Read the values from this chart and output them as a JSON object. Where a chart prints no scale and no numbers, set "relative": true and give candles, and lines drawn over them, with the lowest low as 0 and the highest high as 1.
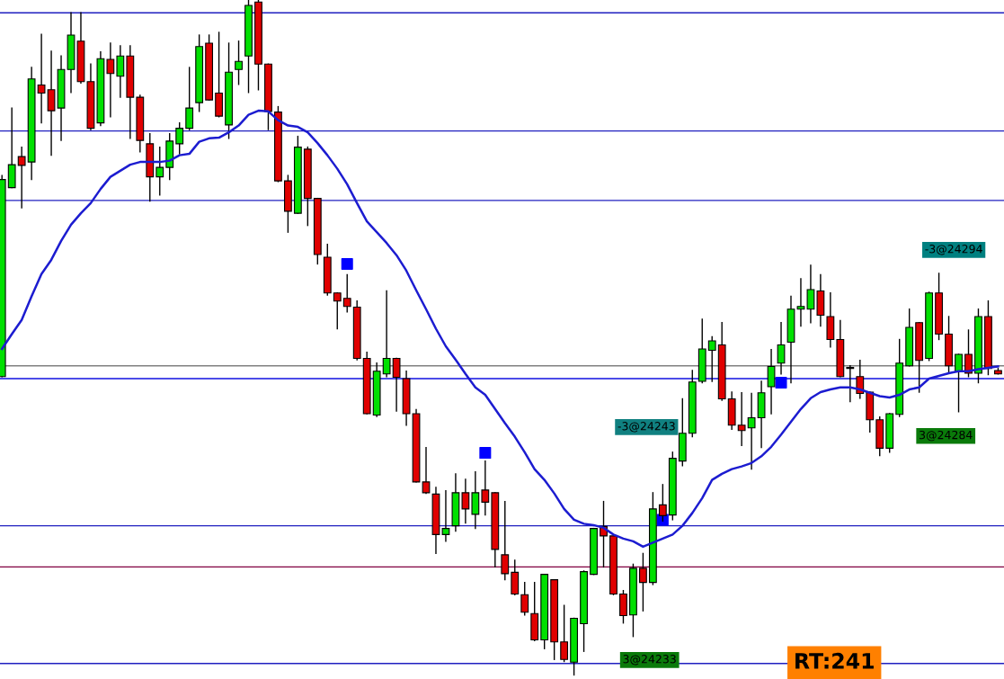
{
  "chart_data": {
    "type": "candlestick",
    "relative": true,
    "categories": [
      null,
      null,
      null,
      null,
      null,
      null,
      null,
      null,
      null,
      null,
      null,
      null,
      null,
      null,
      null,
      null,
      null,
      null,
      null,
      null,
      null,
      null,
      null,
      null,
      null,
      null,
      null,
      null,
      null,
      null,
      null,
      null,
      null,
      null,
      null,
      null,
      null,
      null,
      null,
      null,
      null,
      null,
      null,
      null,
      null,
      null,
      null,
      null,
      null,
      null,
      null,
      null,
      null,
      null,
      null,
      null,
      null,
      null,
      null,
      null,
      null,
      null,
      null,
      null,
      null,
      null,
      null,
      null,
      null,
      null,
      null,
      null,
      null,
      null,
      null,
      null,
      null,
      null,
      null,
      null,
      null,
      null,
      null,
      null,
      null,
      null,
      null,
      null,
      null,
      null,
      null,
      null,
      null,
      null,
      null,
      null,
      null,
      null,
      null,
      null,
      null,
      null
    ],
    "colors": [
      "#00e000",
      "#00e000",
      "#e00000",
      "#00e000",
      "#e00000",
      "#e00000",
      "#00e000",
      "#00e000",
      "#e00000",
      "#e00000",
      "#00e000",
      "#e00000",
      "#00e000",
      "#e00000",
      "#e00000",
      "#e00000",
      "#00e000",
      "#00e000",
      "#00e000",
      "#00e000",
      "#00e000",
      "#e00000",
      "#e00000",
      "#00e000",
      "#00e000",
      "#00e000",
      "#e00000",
      "#e00000",
      "#e00000",
      "#e00000",
      "#00e000",
      "#e00000",
      "#e00000",
      "#e00000",
      "#e00000",
      "#e00000",
      "#e00000",
      "#e00000",
      "#00e000",
      "#00e000",
      "#e00000",
      "#e00000",
      "#e00000",
      "#e00000",
      "#e00000",
      "#00e000",
      "#00e000",
      "#e00000",
      "#00e000",
      "#e00000",
      "#e00000",
      "#e00000",
      "#e00000",
      "#e00000",
      "#e00000",
      "#00e000",
      "#e00000",
      "#e00000",
      "#00e000",
      "#00e000",
      "#00e000",
      "#e00000",
      "#e00000",
      "#e00000",
      "#00e000",
      "#e00000",
      "#00e000",
      "#e00000",
      "#00e000",
      "#00e000",
      "#00e000",
      "#00e000",
      "#00e000",
      "#e00000",
      "#e00000",
      "#e00000",
      "#00e000",
      "#00e000",
      "#00e000",
      "#00e000",
      "#00e000",
      "#00e000",
      "#00e000",
      "#e00000",
      "#e00000",
      "#e00000",
      "#00e000",
      "#e00000",
      "#e00000",
      "#e00000",
      "#00e000",
      "#00e000",
      "#00e000",
      "#e00000",
      "#00e000",
      "#e00000",
      "#e00000",
      "#00e000",
      "#e00000",
      "#00e000",
      "#e00000",
      "#e00000"
    ],
    "ohlc": [
      [
        0.442,
        0.74,
        0.442,
        0.734
      ],
      [
        0.722,
        0.84,
        0.722,
        0.756
      ],
      [
        0.768,
        0.782,
        0.692,
        0.755
      ],
      [
        0.76,
        0.9,
        0.734,
        0.883
      ],
      [
        0.874,
        0.949,
        0.818,
        0.862
      ],
      [
        0.867,
        0.924,
        0.77,
        0.836
      ],
      [
        0.84,
        0.917,
        0.792,
        0.897
      ],
      [
        0.897,
        0.981,
        0.863,
        0.948
      ],
      [
        0.939,
        0.981,
        0.877,
        0.879
      ],
      [
        0.879,
        0.905,
        0.808,
        0.81
      ],
      [
        0.818,
        0.923,
        0.814,
        0.913
      ],
      [
        0.912,
        0.936,
        0.827,
        0.891
      ],
      [
        0.887,
        0.932,
        0.856,
        0.917
      ],
      [
        0.917,
        0.932,
        0.795,
        0.856
      ],
      [
        0.856,
        0.859,
        0.775,
        0.792
      ],
      [
        0.787,
        0.802,
        0.702,
        0.738
      ],
      [
        0.738,
        0.782,
        0.711,
        0.752
      ],
      [
        0.752,
        0.802,
        0.734,
        0.791
      ],
      [
        0.787,
        0.818,
        0.772,
        0.81
      ],
      [
        0.81,
        0.9,
        0.808,
        0.84
      ],
      [
        0.848,
        0.948,
        0.835,
        0.931
      ],
      [
        0.936,
        0.948,
        0.852,
        0.852
      ],
      [
        0.862,
        0.952,
        0.827,
        0.828
      ],
      [
        0.815,
        0.936,
        0.795,
        0.893
      ],
      [
        0.897,
        0.939,
        0.875,
        0.909
      ],
      [
        0.917,
        1.0,
        0.863,
        0.992
      ],
      [
        0.997,
        1.0,
        0.867,
        0.905
      ],
      [
        0.905,
        0.905,
        0.808,
        0.835
      ],
      [
        0.834,
        0.842,
        0.731,
        0.732
      ],
      [
        0.732,
        0.74,
        0.656,
        0.687
      ],
      [
        0.684,
        0.798,
        0.684,
        0.782
      ],
      [
        0.779,
        0.782,
        0.666,
        0.706
      ],
      [
        0.706,
        0.706,
        0.609,
        0.623
      ],
      [
        0.619,
        0.638,
        0.563,
        0.566
      ],
      [
        0.566,
        0.566,
        0.513,
        0.554
      ],
      [
        0.558,
        0.593,
        0.538,
        0.546
      ],
      [
        0.545,
        0.554,
        0.467,
        0.469
      ],
      [
        0.469,
        0.478,
        0.387,
        0.387
      ],
      [
        0.385,
        0.462,
        0.383,
        0.45
      ],
      [
        0.446,
        0.569,
        0.442,
        0.469
      ],
      [
        0.469,
        0.469,
        0.391,
        0.441
      ],
      [
        0.439,
        0.45,
        0.37,
        0.387
      ],
      [
        0.387,
        0.393,
        0.286,
        0.286
      ],
      [
        0.286,
        0.337,
        0.269,
        0.27
      ],
      [
        0.268,
        0.278,
        0.18,
        0.208
      ],
      [
        0.208,
        0.273,
        0.198,
        0.217
      ],
      [
        0.221,
        0.298,
        0.213,
        0.27
      ],
      [
        0.27,
        0.29,
        0.225,
        0.246
      ],
      [
        0.238,
        0.301,
        0.217,
        0.27
      ],
      [
        0.274,
        0.317,
        0.237,
        0.256
      ],
      [
        0.27,
        0.27,
        0.16,
        0.186
      ],
      [
        0.178,
        0.257,
        0.141,
        0.15
      ],
      [
        0.152,
        0.17,
        0.119,
        0.12
      ],
      [
        0.119,
        0.137,
        0.089,
        0.093
      ],
      [
        0.091,
        0.137,
        0.051,
        0.052
      ],
      [
        0.052,
        0.149,
        0.039,
        0.149
      ],
      [
        0.141,
        0.141,
        0.023,
        0.049
      ],
      [
        0.049,
        0.103,
        0.02,
        0.023
      ],
      [
        0.019,
        0.084,
        0.0,
        0.084
      ],
      [
        0.076,
        0.154,
        0.035,
        0.153
      ],
      [
        0.149,
        0.217,
        0.149,
        0.217
      ],
      [
        0.22,
        0.257,
        0.16,
        0.206
      ],
      [
        0.206,
        0.206,
        0.119,
        0.12
      ],
      [
        0.12,
        0.125,
        0.077,
        0.088
      ],
      [
        0.089,
        0.164,
        0.057,
        0.158
      ],
      [
        0.158,
        0.18,
        0.095,
        0.137
      ],
      [
        0.137,
        0.27,
        0.134,
        0.246
      ],
      [
        0.252,
        0.282,
        0.228,
        0.236
      ],
      [
        0.237,
        0.33,
        0.23,
        0.321
      ],
      [
        0.317,
        0.409,
        0.31,
        0.358
      ],
      [
        0.358,
        0.451,
        0.353,
        0.434
      ],
      [
        0.435,
        0.527,
        0.433,
        0.483
      ],
      [
        0.481,
        0.501,
        0.435,
        0.495
      ],
      [
        0.489,
        0.522,
        0.407,
        0.409
      ],
      [
        0.409,
        0.419,
        0.364,
        0.37
      ],
      [
        0.37,
        0.418,
        0.34,
        0.362
      ],
      [
        0.366,
        0.417,
        0.305,
        0.381
      ],
      [
        0.381,
        0.435,
        0.337,
        0.418
      ],
      [
        0.427,
        0.482,
        0.387,
        0.457
      ],
      [
        0.462,
        0.522,
        0.446,
        0.489
      ],
      [
        0.493,
        0.561,
        0.433,
        0.542
      ],
      [
        0.542,
        0.587,
        0.517,
        0.546
      ],
      [
        0.542,
        0.607,
        0.522,
        0.571
      ],
      [
        0.569,
        0.593,
        0.517,
        0.533
      ],
      [
        0.531,
        0.566,
        0.486,
        0.497
      ],
      [
        0.497,
        0.525,
        0.442,
        0.442
      ],
      [
        0.454,
        0.458,
        0.405,
        0.455
      ],
      [
        0.442,
        0.466,
        0.41,
        0.417
      ],
      [
        0.419,
        0.419,
        0.36,
        0.378
      ],
      [
        0.378,
        0.382,
        0.325,
        0.336
      ],
      [
        0.336,
        0.387,
        0.33,
        0.387
      ],
      [
        0.386,
        0.497,
        0.383,
        0.462
      ],
      [
        0.458,
        0.542,
        0.458,
        0.515
      ],
      [
        0.522,
        0.522,
        0.419,
        0.466
      ],
      [
        0.469,
        0.567,
        0.466,
        0.566
      ],
      [
        0.566,
        0.595,
        0.497,
        0.505
      ],
      [
        0.505,
        0.531,
        0.449,
        0.458
      ],
      [
        0.45,
        0.475,
        0.39,
        0.475
      ],
      [
        0.475,
        0.511,
        0.442,
        0.447
      ],
      [
        0.447,
        0.542,
        0.433,
        0.531
      ],
      [
        0.531,
        0.554,
        0.445,
        0.454
      ],
      [
        0.451,
        0.454,
        0.446,
        0.446
      ]
    ],
    "series": [
      {
        "type": "line",
        "color": "#1c1cd0",
        "values": [
          0.483,
          0.505,
          0.526,
          0.561,
          0.594,
          0.615,
          0.643,
          0.667,
          0.684,
          0.699,
          0.72,
          0.738,
          0.747,
          0.756,
          0.76,
          0.76,
          0.76,
          0.762,
          0.77,
          0.772,
          0.79,
          0.795,
          0.796,
          0.804,
          0.814,
          0.83,
          0.836,
          0.835,
          0.822,
          0.814,
          0.812,
          0.804,
          0.788,
          0.77,
          0.75,
          0.727,
          0.699,
          0.672,
          0.656,
          0.64,
          0.622,
          0.599,
          0.57,
          0.542,
          0.513,
          0.487,
          0.467,
          0.446,
          0.426,
          0.415,
          0.394,
          0.373,
          0.353,
          0.33,
          0.305,
          0.289,
          0.269,
          0.246,
          0.23,
          0.224,
          0.222,
          0.218,
          0.208,
          0.202,
          0.198,
          0.19,
          0.196,
          0.202,
          0.208,
          0.221,
          0.24,
          0.262,
          0.289,
          0.298,
          0.305,
          0.309,
          0.314,
          0.324,
          0.338,
          0.356,
          0.375,
          0.394,
          0.41,
          0.419,
          0.423,
          0.426,
          0.426,
          0.423,
          0.418,
          0.413,
          0.411,
          0.415,
          0.423,
          0.426,
          0.439,
          0.443,
          0.447,
          0.45,
          0.45,
          0.453,
          0.455,
          0.457
        ]
      },
      {
        "type": "scatter",
        "color": "#0000ff",
        "marker": "square",
        "values": [
          null,
          null,
          null,
          null,
          null,
          null,
          null,
          null,
          null,
          null,
          null,
          null,
          null,
          null,
          null,
          null,
          null,
          null,
          null,
          null,
          null,
          null,
          null,
          null,
          null,
          null,
          null,
          null,
          null,
          null,
          null,
          null,
          null,
          null,
          null,
          0.609,
          null,
          null,
          null,
          null,
          null,
          null,
          null,
          null,
          null,
          null,
          null,
          null,
          null,
          0.329,
          null,
          null,
          null,
          null,
          null,
          null,
          null,
          null,
          null,
          null,
          null,
          null,
          null,
          null,
          null,
          null,
          null,
          0.23,
          null,
          null,
          null,
          null,
          null,
          null,
          null,
          null,
          null,
          null,
          null,
          0.433,
          null,
          null,
          null,
          null,
          null,
          null,
          null,
          null,
          null,
          null,
          null,
          null,
          null,
          null,
          null,
          null,
          null,
          null,
          null,
          null,
          null,
          null
        ]
      }
    ],
    "ref_lines": [
      {
        "axis": "y",
        "value": 0.981,
        "color": "#2020c0"
      },
      {
        "axis": "y",
        "value": 0.806,
        "color": "#2020c0"
      },
      {
        "axis": "y",
        "value": 0.703,
        "color": "#2020c0"
      },
      {
        "axis": "y",
        "value": 0.458,
        "color": "#808080"
      },
      {
        "axis": "y",
        "value": 0.439,
        "color": "#1010e0"
      },
      {
        "axis": "y",
        "value": 0.221,
        "color": "#2020c0"
      },
      {
        "axis": "y",
        "value": 0.16,
        "color": "#800040"
      },
      {
        "axis": "y",
        "value": 0.017,
        "color": "#2020c0"
      }
    ],
    "annotations": [
      "-3@24294",
      "3@24284",
      "-3@24243",
      "3@24233",
      "RT:241"
    ]
  }
}
